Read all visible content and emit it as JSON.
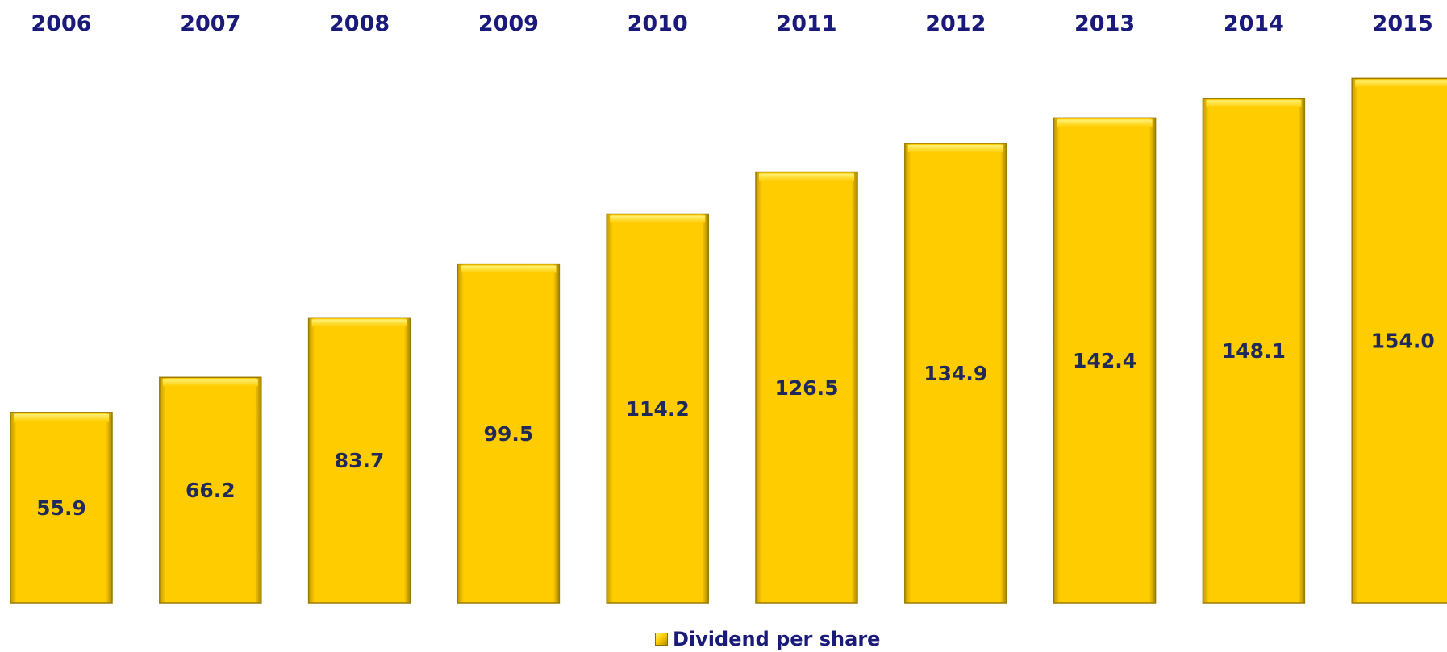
{
  "chart_data": {
    "type": "bar",
    "categories": [
      "2006",
      "2007",
      "2008",
      "2009",
      "2010",
      "2011",
      "2012",
      "2013",
      "2014",
      "2015"
    ],
    "series": [
      {
        "name": "Dividend per share",
        "values": [
          55.9,
          66.2,
          83.7,
          99.5,
          114.2,
          126.5,
          134.9,
          142.4,
          148.1,
          154.0
        ]
      }
    ],
    "value_labels": [
      "55.9",
      "66.2",
      "83.7",
      "99.5",
      "114.2",
      "126.5",
      "134.9",
      "142.4",
      "148.1",
      "154.0"
    ],
    "title": "",
    "xlabel": "",
    "ylabel": "",
    "ylim": [
      0,
      160
    ],
    "grid": false,
    "legend_position": "bottom-center",
    "bar_color": "#ffcc00",
    "text_color": "#1a1a7a"
  },
  "legend": {
    "label": "Dividend per share"
  }
}
